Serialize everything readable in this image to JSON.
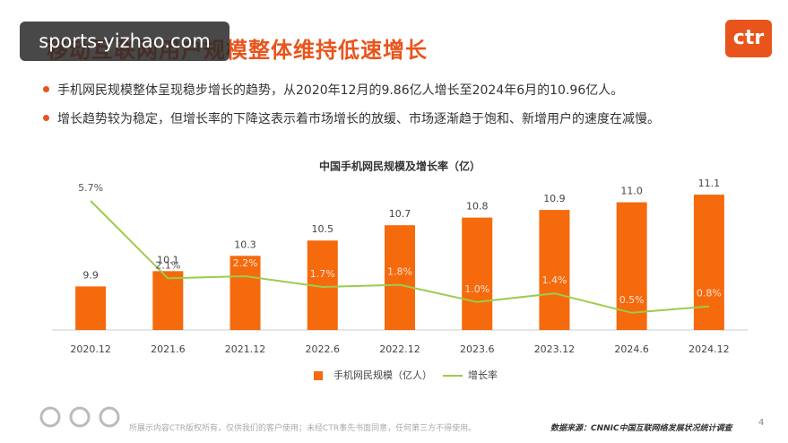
{
  "slide_title": "移动互联网用户规模整体维持低速增长",
  "watermark": "sports-yizhao.com",
  "logo": "ctr",
  "bullets": [
    "手机网民规模整体呈现稳步增长的趋势，从2020年12月的9.86亿人增长至2024年6月的10.96亿人。",
    "增长趋势较为稳定，但增长率的下降这表示着市场增长的放缓、市场逐渐趋于饱和、新增用户的速度在减慢。"
  ],
  "chart_data": {
    "type": "bar",
    "title": "中国手机网民规模及增长率（亿）",
    "categories": [
      "2020.12",
      "2021.6",
      "2021.12",
      "2022.6",
      "2022.12",
      "2023.6",
      "2023.12",
      "2024.6",
      "2024.12"
    ],
    "series": [
      {
        "name": "手机网民规模（亿人）",
        "type": "bar",
        "color": "#f56a0d",
        "values": [
          9.9,
          10.1,
          10.3,
          10.5,
          10.7,
          10.8,
          10.9,
          11.0,
          11.1
        ],
        "value_labels": [
          "9.9",
          "10.1",
          "10.3",
          "10.5",
          "10.7",
          "10.8",
          "10.9",
          "11.0",
          "11.1"
        ]
      },
      {
        "name": "增长率",
        "type": "line",
        "axis": "y2",
        "color": "#9ccc4a",
        "values": [
          5.7,
          2.1,
          2.2,
          1.7,
          1.8,
          1.0,
          1.4,
          0.5,
          0.8
        ],
        "value_labels": [
          "5.7%",
          "2.1%",
          "2.2%",
          "1.7%",
          "1.8%",
          "1.0%",
          "1.4%",
          "0.5%",
          "0.8%"
        ]
      }
    ],
    "ylim": [
      9.33,
      11.3
    ],
    "y2lim": [
      -0.3,
      6.7
    ],
    "legend": "bottom"
  },
  "footer": {
    "copyright": "所展示内容CTR版权所有，仅供我们的客户使用；未经CTR事先书面同意，任何第三方不得使用。",
    "source": "数据来源：CNNIC中国互联网络发展状况统计调查",
    "page": "4"
  }
}
